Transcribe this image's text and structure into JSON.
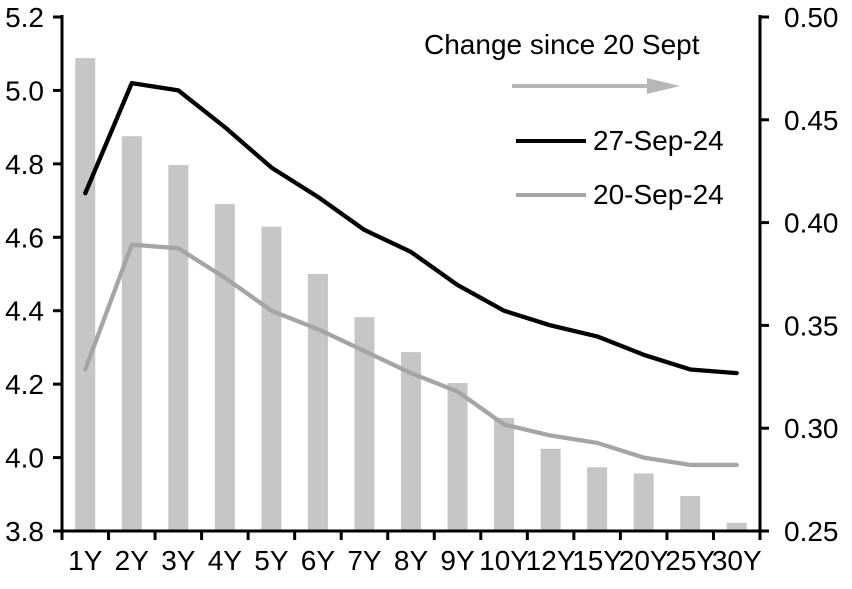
{
  "chart_data": {
    "type": "combo",
    "title": "",
    "xlabel": "",
    "ylabel_left": "",
    "ylabel_right": "",
    "grid": false,
    "legend_position": "top-right-inside",
    "categories": [
      "1Y",
      "2Y",
      "3Y",
      "4Y",
      "5Y",
      "6Y",
      "7Y",
      "8Y",
      "9Y",
      "10Y",
      "12Y",
      "15Y",
      "20Y",
      "25Y",
      "30Y"
    ],
    "series": [
      {
        "name": "Change since 20 Sept",
        "type": "bar",
        "axis": "right",
        "color": "#c6c6c6",
        "values": [
          0.48,
          0.442,
          0.428,
          0.409,
          0.398,
          0.375,
          0.354,
          0.337,
          0.322,
          0.305,
          0.29,
          0.281,
          0.278,
          0.267,
          0.254
        ]
      },
      {
        "name": "27-Sep-24",
        "type": "line",
        "axis": "left",
        "color": "#000000",
        "values": [
          4.72,
          5.02,
          5.0,
          4.9,
          4.79,
          4.71,
          4.62,
          4.56,
          4.47,
          4.4,
          4.36,
          4.33,
          4.28,
          4.24,
          4.23
        ]
      },
      {
        "name": "20-Sep-24",
        "type": "line",
        "axis": "left",
        "color": "#a5a5a5",
        "values": [
          4.24,
          4.58,
          4.57,
          4.49,
          4.4,
          4.35,
          4.29,
          4.23,
          4.18,
          4.09,
          4.06,
          4.04,
          4.0,
          3.98,
          3.98
        ]
      }
    ],
    "left_axis": {
      "min": 3.8,
      "max": 5.2,
      "tick_values": [
        5.2,
        5.0,
        4.8,
        4.6,
        4.4,
        4.2,
        4.0,
        3.8
      ],
      "tick_labels": [
        "5.2",
        "5.0",
        "4.8",
        "4.6",
        "4.4",
        "4.2",
        "4.0",
        "3.8"
      ]
    },
    "right_axis": {
      "min": 0.25,
      "max": 0.5,
      "tick_values": [
        0.5,
        0.45,
        0.4,
        0.35,
        0.3,
        0.25
      ],
      "tick_labels": [
        "0.50",
        "0.45",
        "0.40",
        "0.35",
        "0.30",
        "0.25"
      ]
    },
    "legend": {
      "title": "Change since 20 Sept",
      "arrow_color": "#b7b7b7",
      "items": [
        {
          "label": "27-Sep-24",
          "color": "#000000"
        },
        {
          "label": "20-Sep-24",
          "color": "#a5a5a5"
        }
      ]
    }
  }
}
